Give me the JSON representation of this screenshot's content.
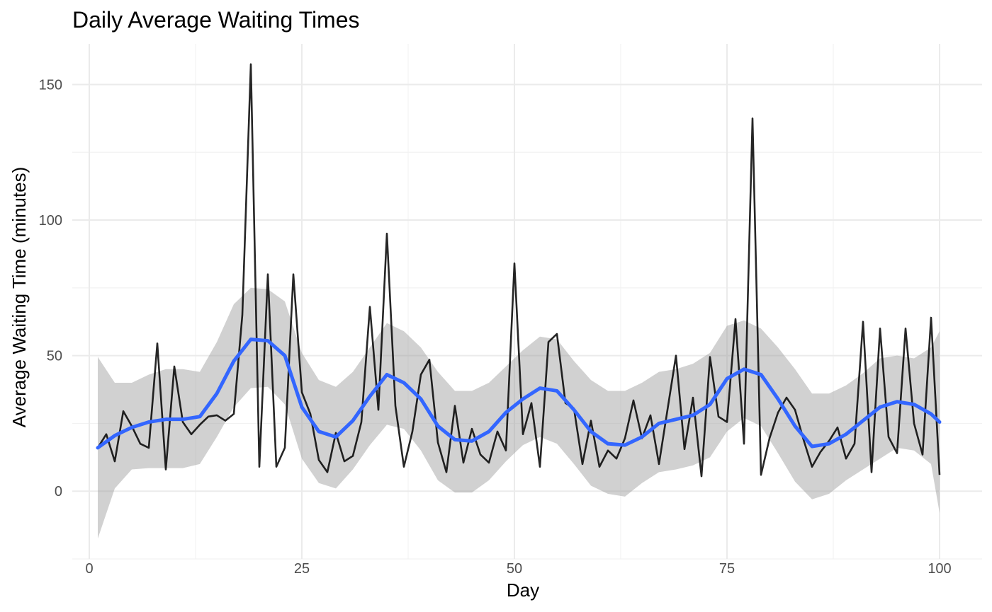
{
  "chart_data": {
    "type": "line",
    "title": "Daily Average Waiting Times",
    "xlabel": "Day",
    "ylabel": "Average Waiting Time (minutes)",
    "xlim": [
      -2,
      105
    ],
    "ylim": [
      -25,
      165
    ],
    "x_ticks": [
      0,
      25,
      50,
      75,
      100
    ],
    "y_ticks": [
      0,
      50,
      100,
      150
    ],
    "grid": true,
    "colors": {
      "raw": "#000000",
      "smooth": "#3366ff",
      "band": "#999999"
    },
    "series": [
      {
        "type": "line",
        "x": [
          1,
          2,
          3,
          4,
          5,
          6,
          7,
          8,
          9,
          10,
          11,
          12,
          13,
          14,
          15,
          16,
          17,
          18,
          19,
          20,
          21,
          22,
          23,
          24,
          25,
          26,
          27,
          28,
          29,
          30,
          31,
          32,
          33,
          34,
          35,
          36,
          37,
          38,
          39,
          40,
          41,
          42,
          43,
          44,
          45,
          46,
          47,
          48,
          49,
          50,
          51,
          52,
          53,
          54,
          55,
          56,
          57,
          58,
          59,
          60,
          61,
          62,
          63,
          64,
          65,
          66,
          67,
          68,
          69,
          70,
          71,
          72,
          73,
          74,
          75,
          76,
          77,
          78,
          79,
          80,
          81,
          82,
          83,
          84,
          85,
          86,
          87,
          88,
          89,
          90,
          91,
          92,
          93,
          94,
          95,
          96,
          97,
          98,
          99,
          100
        ],
        "y": [
          16,
          21,
          11,
          29.5,
          24,
          17.5,
          16,
          54.5,
          8,
          46,
          25.5,
          21,
          24.5,
          27.5,
          28,
          26,
          28.5,
          65,
          157.5,
          9,
          80,
          9,
          16,
          80,
          36.5,
          28.5,
          11.5,
          7,
          21.5,
          11,
          13,
          25.5,
          68,
          30,
          95,
          31.5,
          9,
          22,
          43,
          48.5,
          18,
          7,
          31.5,
          10.5,
          23,
          13.5,
          10.5,
          22,
          15,
          84,
          21,
          32.5,
          9,
          55,
          58,
          32.5,
          30.5,
          10,
          26,
          9,
          15,
          12,
          19.5,
          33.5,
          19.5,
          28,
          10,
          30,
          50,
          15.5,
          34.5,
          5.5,
          49.5,
          27.5,
          25.5,
          63.5,
          17.5,
          137.5,
          6,
          19.5,
          29,
          34.5,
          30,
          19,
          9,
          14.5,
          18.5,
          23.5,
          12,
          17.5,
          62.5,
          7,
          60,
          20,
          14,
          60,
          25,
          13.5,
          64,
          6
        ]
      },
      {
        "type": "smooth",
        "x": [
          1,
          3,
          5,
          7,
          9,
          11,
          13,
          15,
          17,
          19,
          21,
          23,
          25,
          27,
          29,
          31,
          33,
          35,
          37,
          39,
          41,
          43,
          45,
          47,
          49,
          51,
          53,
          55,
          57,
          59,
          61,
          63,
          65,
          67,
          69,
          71,
          73,
          75,
          77,
          79,
          81,
          83,
          85,
          87,
          89,
          91,
          93,
          95,
          97,
          99,
          100
        ],
        "y": [
          16,
          20.5,
          23.5,
          25.5,
          26.5,
          26.5,
          27.5,
          36,
          48,
          56,
          55.5,
          50,
          31,
          22,
          20,
          26,
          35,
          43,
          40,
          34,
          24,
          19,
          18.5,
          22,
          29,
          34,
          38,
          37,
          30,
          22,
          17.5,
          17,
          20,
          25,
          26.5,
          28,
          32,
          41.5,
          45,
          43,
          34,
          24,
          16.5,
          17.5,
          21,
          26,
          31,
          33,
          32,
          28.5,
          25.5
        ]
      },
      {
        "type": "ribbon",
        "x": [
          1,
          3,
          5,
          7,
          9,
          11,
          13,
          15,
          17,
          19,
          21,
          23,
          25,
          27,
          29,
          31,
          33,
          35,
          37,
          39,
          41,
          43,
          45,
          47,
          49,
          51,
          53,
          55,
          57,
          59,
          61,
          63,
          65,
          67,
          69,
          71,
          73,
          75,
          77,
          79,
          81,
          83,
          85,
          87,
          89,
          91,
          93,
          95,
          97,
          99,
          100
        ],
        "upper": [
          49.5,
          40,
          40,
          43,
          45,
          45,
          44,
          55,
          69,
          75,
          74.5,
          70,
          51,
          41,
          38.5,
          44,
          53,
          62,
          59,
          53,
          44,
          37,
          37,
          40,
          46,
          52,
          57,
          56,
          48,
          41,
          37,
          37,
          40,
          44,
          45,
          47,
          51,
          61,
          63,
          60,
          53,
          45,
          36,
          36,
          39,
          43.5,
          49,
          50,
          49,
          53,
          59
        ],
        "lower": [
          -17.5,
          1,
          8,
          8.5,
          8.5,
          8.5,
          10,
          20,
          31,
          38,
          38.5,
          32,
          12,
          3,
          1,
          8,
          17,
          24.5,
          23,
          15,
          4,
          -0.5,
          -0.5,
          4,
          11,
          17,
          20,
          17.5,
          10,
          2,
          -1,
          -2,
          3,
          7,
          8,
          9.5,
          12.5,
          22,
          27,
          24,
          14,
          3.5,
          -3,
          -1,
          4,
          8,
          12,
          16,
          15,
          10,
          -8
        ]
      }
    ]
  }
}
